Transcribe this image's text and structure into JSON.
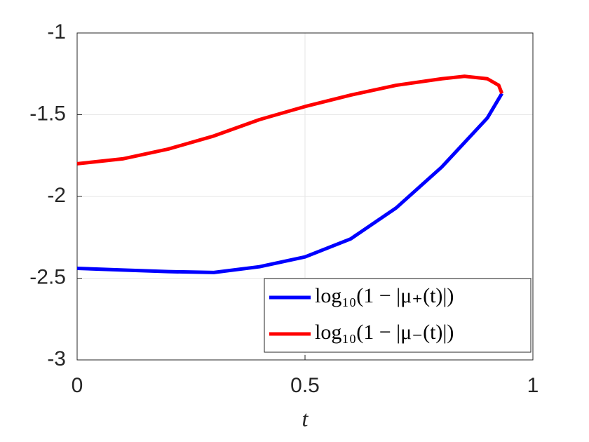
{
  "chart_data": {
    "type": "line",
    "x_label": "t",
    "xlim": [
      0,
      1
    ],
    "xticks": [
      0,
      0.5,
      1
    ],
    "ylim": [
      -3,
      -1
    ],
    "yticks": [
      -1,
      -1.5,
      -2,
      -2.5,
      -3
    ],
    "grid": true,
    "legend": "lower right",
    "series": [
      {
        "name": "log₁₀(1 − |μ₊(t)|)",
        "color": "#0000ff",
        "x": [
          0,
          0.1,
          0.2,
          0.3,
          0.4,
          0.5,
          0.6,
          0.7,
          0.8,
          0.9,
          0.932
        ],
        "values": [
          -2.44,
          -2.45,
          -2.46,
          -2.465,
          -2.43,
          -2.37,
          -2.26,
          -2.07,
          -1.82,
          -1.52,
          -1.37
        ]
      },
      {
        "name": "log₁₀(1 − |μ₋(t)|)",
        "color": "#ff0000",
        "x": [
          0,
          0.1,
          0.2,
          0.3,
          0.4,
          0.5,
          0.6,
          0.7,
          0.8,
          0.85,
          0.9,
          0.925,
          0.932
        ],
        "values": [
          -1.8,
          -1.77,
          -1.71,
          -1.63,
          -1.53,
          -1.45,
          -1.38,
          -1.32,
          -1.28,
          -1.265,
          -1.28,
          -1.32,
          -1.37
        ]
      }
    ]
  }
}
